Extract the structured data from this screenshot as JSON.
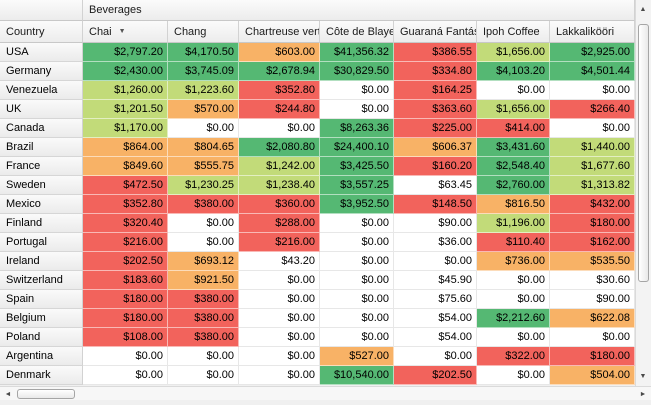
{
  "band_header": "Beverages",
  "row_header_label": "Country",
  "corner_label": "",
  "icons": {
    "dropdown": "▼",
    "up": "▲",
    "down": "▼",
    "left": "◄",
    "right": "►"
  },
  "colors": {
    "g": "#55b873",
    "y": "#c2db79",
    "o": "#f8b266",
    "r": "#f2635c",
    "w": "#ffffff"
  },
  "columns": [
    {
      "label": "Chai",
      "has_dropdown": true
    },
    {
      "label": "Chang",
      "has_dropdown": false
    },
    {
      "label": "Chartreuse vert",
      "has_dropdown": false
    },
    {
      "label": "Côte de Blaye",
      "has_dropdown": false
    },
    {
      "label": "Guaraná Fantás",
      "has_dropdown": false
    },
    {
      "label": "Ipoh Coffee",
      "has_dropdown": false
    },
    {
      "label": "Lakkalikööri",
      "has_dropdown": false
    }
  ],
  "rows": [
    {
      "country": "USA",
      "cells": [
        {
          "v": "$2,797.20",
          "c": "g"
        },
        {
          "v": "$4,170.50",
          "c": "g"
        },
        {
          "v": "$603.00",
          "c": "o"
        },
        {
          "v": "$41,356.32",
          "c": "g"
        },
        {
          "v": "$386.55",
          "c": "r"
        },
        {
          "v": "$1,656.00",
          "c": "y"
        },
        {
          "v": "$2,925.00",
          "c": "g"
        }
      ]
    },
    {
      "country": "Germany",
      "cells": [
        {
          "v": "$2,430.00",
          "c": "g"
        },
        {
          "v": "$3,745.09",
          "c": "g"
        },
        {
          "v": "$2,678.94",
          "c": "g"
        },
        {
          "v": "$30,829.50",
          "c": "g"
        },
        {
          "v": "$334.80",
          "c": "r"
        },
        {
          "v": "$4,103.20",
          "c": "g"
        },
        {
          "v": "$4,501.44",
          "c": "g"
        }
      ]
    },
    {
      "country": "Venezuela",
      "cells": [
        {
          "v": "$1,260.00",
          "c": "y"
        },
        {
          "v": "$1,223.60",
          "c": "y"
        },
        {
          "v": "$352.80",
          "c": "r"
        },
        {
          "v": "$0.00",
          "c": "w"
        },
        {
          "v": "$164.25",
          "c": "r"
        },
        {
          "v": "$0.00",
          "c": "w"
        },
        {
          "v": "$0.00",
          "c": "w"
        }
      ]
    },
    {
      "country": "UK",
      "cells": [
        {
          "v": "$1,201.50",
          "c": "y"
        },
        {
          "v": "$570.00",
          "c": "o"
        },
        {
          "v": "$244.80",
          "c": "r"
        },
        {
          "v": "$0.00",
          "c": "w"
        },
        {
          "v": "$363.60",
          "c": "r"
        },
        {
          "v": "$1,656.00",
          "c": "y"
        },
        {
          "v": "$266.40",
          "c": "r"
        }
      ]
    },
    {
      "country": "Canada",
      "cells": [
        {
          "v": "$1,170.00",
          "c": "y"
        },
        {
          "v": "$0.00",
          "c": "w"
        },
        {
          "v": "$0.00",
          "c": "w"
        },
        {
          "v": "$8,263.36",
          "c": "g"
        },
        {
          "v": "$225.00",
          "c": "r"
        },
        {
          "v": "$414.00",
          "c": "r"
        },
        {
          "v": "$0.00",
          "c": "w"
        }
      ]
    },
    {
      "country": "Brazil",
      "cells": [
        {
          "v": "$864.00",
          "c": "o"
        },
        {
          "v": "$804.65",
          "c": "o"
        },
        {
          "v": "$2,080.80",
          "c": "g"
        },
        {
          "v": "$24,400.10",
          "c": "g"
        },
        {
          "v": "$606.37",
          "c": "o"
        },
        {
          "v": "$3,431.60",
          "c": "g"
        },
        {
          "v": "$1,440.00",
          "c": "y"
        }
      ]
    },
    {
      "country": "France",
      "cells": [
        {
          "v": "$849.60",
          "c": "o"
        },
        {
          "v": "$555.75",
          "c": "o"
        },
        {
          "v": "$1,242.00",
          "c": "y"
        },
        {
          "v": "$3,425.50",
          "c": "g"
        },
        {
          "v": "$160.20",
          "c": "r"
        },
        {
          "v": "$2,548.40",
          "c": "g"
        },
        {
          "v": "$1,677.60",
          "c": "y"
        }
      ]
    },
    {
      "country": "Sweden",
      "cells": [
        {
          "v": "$472.50",
          "c": "r"
        },
        {
          "v": "$1,230.25",
          "c": "y"
        },
        {
          "v": "$1,238.40",
          "c": "y"
        },
        {
          "v": "$3,557.25",
          "c": "g"
        },
        {
          "v": "$63.45",
          "c": "w"
        },
        {
          "v": "$2,760.00",
          "c": "g"
        },
        {
          "v": "$1,313.82",
          "c": "y"
        }
      ]
    },
    {
      "country": "Mexico",
      "cells": [
        {
          "v": "$352.80",
          "c": "r"
        },
        {
          "v": "$380.00",
          "c": "r"
        },
        {
          "v": "$360.00",
          "c": "r"
        },
        {
          "v": "$3,952.50",
          "c": "g"
        },
        {
          "v": "$148.50",
          "c": "r"
        },
        {
          "v": "$816.50",
          "c": "o"
        },
        {
          "v": "$432.00",
          "c": "r"
        }
      ]
    },
    {
      "country": "Finland",
      "cells": [
        {
          "v": "$320.40",
          "c": "r"
        },
        {
          "v": "$0.00",
          "c": "w"
        },
        {
          "v": "$288.00",
          "c": "r"
        },
        {
          "v": "$0.00",
          "c": "w"
        },
        {
          "v": "$90.00",
          "c": "w"
        },
        {
          "v": "$1,196.00",
          "c": "y"
        },
        {
          "v": "$180.00",
          "c": "r"
        }
      ]
    },
    {
      "country": "Portugal",
      "cells": [
        {
          "v": "$216.00",
          "c": "r"
        },
        {
          "v": "$0.00",
          "c": "w"
        },
        {
          "v": "$216.00",
          "c": "r"
        },
        {
          "v": "$0.00",
          "c": "w"
        },
        {
          "v": "$36.00",
          "c": "w"
        },
        {
          "v": "$110.40",
          "c": "r"
        },
        {
          "v": "$162.00",
          "c": "r"
        }
      ]
    },
    {
      "country": "Ireland",
      "cells": [
        {
          "v": "$202.50",
          "c": "r"
        },
        {
          "v": "$693.12",
          "c": "o"
        },
        {
          "v": "$43.20",
          "c": "w"
        },
        {
          "v": "$0.00",
          "c": "w"
        },
        {
          "v": "$0.00",
          "c": "w"
        },
        {
          "v": "$736.00",
          "c": "o"
        },
        {
          "v": "$535.50",
          "c": "o"
        }
      ]
    },
    {
      "country": "Switzerland",
      "cells": [
        {
          "v": "$183.60",
          "c": "r"
        },
        {
          "v": "$921.50",
          "c": "o"
        },
        {
          "v": "$0.00",
          "c": "w"
        },
        {
          "v": "$0.00",
          "c": "w"
        },
        {
          "v": "$45.90",
          "c": "w"
        },
        {
          "v": "$0.00",
          "c": "w"
        },
        {
          "v": "$30.60",
          "c": "w"
        }
      ]
    },
    {
      "country": "Spain",
      "cells": [
        {
          "v": "$180.00",
          "c": "r"
        },
        {
          "v": "$380.00",
          "c": "r"
        },
        {
          "v": "$0.00",
          "c": "w"
        },
        {
          "v": "$0.00",
          "c": "w"
        },
        {
          "v": "$75.60",
          "c": "w"
        },
        {
          "v": "$0.00",
          "c": "w"
        },
        {
          "v": "$90.00",
          "c": "w"
        }
      ]
    },
    {
      "country": "Belgium",
      "cells": [
        {
          "v": "$180.00",
          "c": "r"
        },
        {
          "v": "$380.00",
          "c": "r"
        },
        {
          "v": "$0.00",
          "c": "w"
        },
        {
          "v": "$0.00",
          "c": "w"
        },
        {
          "v": "$54.00",
          "c": "w"
        },
        {
          "v": "$2,212.60",
          "c": "g"
        },
        {
          "v": "$622.08",
          "c": "o"
        }
      ]
    },
    {
      "country": "Poland",
      "cells": [
        {
          "v": "$108.00",
          "c": "r"
        },
        {
          "v": "$380.00",
          "c": "r"
        },
        {
          "v": "$0.00",
          "c": "w"
        },
        {
          "v": "$0.00",
          "c": "w"
        },
        {
          "v": "$54.00",
          "c": "w"
        },
        {
          "v": "$0.00",
          "c": "w"
        },
        {
          "v": "$0.00",
          "c": "w"
        }
      ]
    },
    {
      "country": "Argentina",
      "cells": [
        {
          "v": "$0.00",
          "c": "w"
        },
        {
          "v": "$0.00",
          "c": "w"
        },
        {
          "v": "$0.00",
          "c": "w"
        },
        {
          "v": "$527.00",
          "c": "o"
        },
        {
          "v": "$0.00",
          "c": "w"
        },
        {
          "v": "$322.00",
          "c": "r"
        },
        {
          "v": "$180.00",
          "c": "r"
        }
      ]
    },
    {
      "country": "Denmark",
      "cells": [
        {
          "v": "$0.00",
          "c": "w"
        },
        {
          "v": "$0.00",
          "c": "w"
        },
        {
          "v": "$0.00",
          "c": "w"
        },
        {
          "v": "$10,540.00",
          "c": "g"
        },
        {
          "v": "$202.50",
          "c": "r"
        },
        {
          "v": "$0.00",
          "c": "w"
        },
        {
          "v": "$504.00",
          "c": "o"
        }
      ]
    }
  ]
}
